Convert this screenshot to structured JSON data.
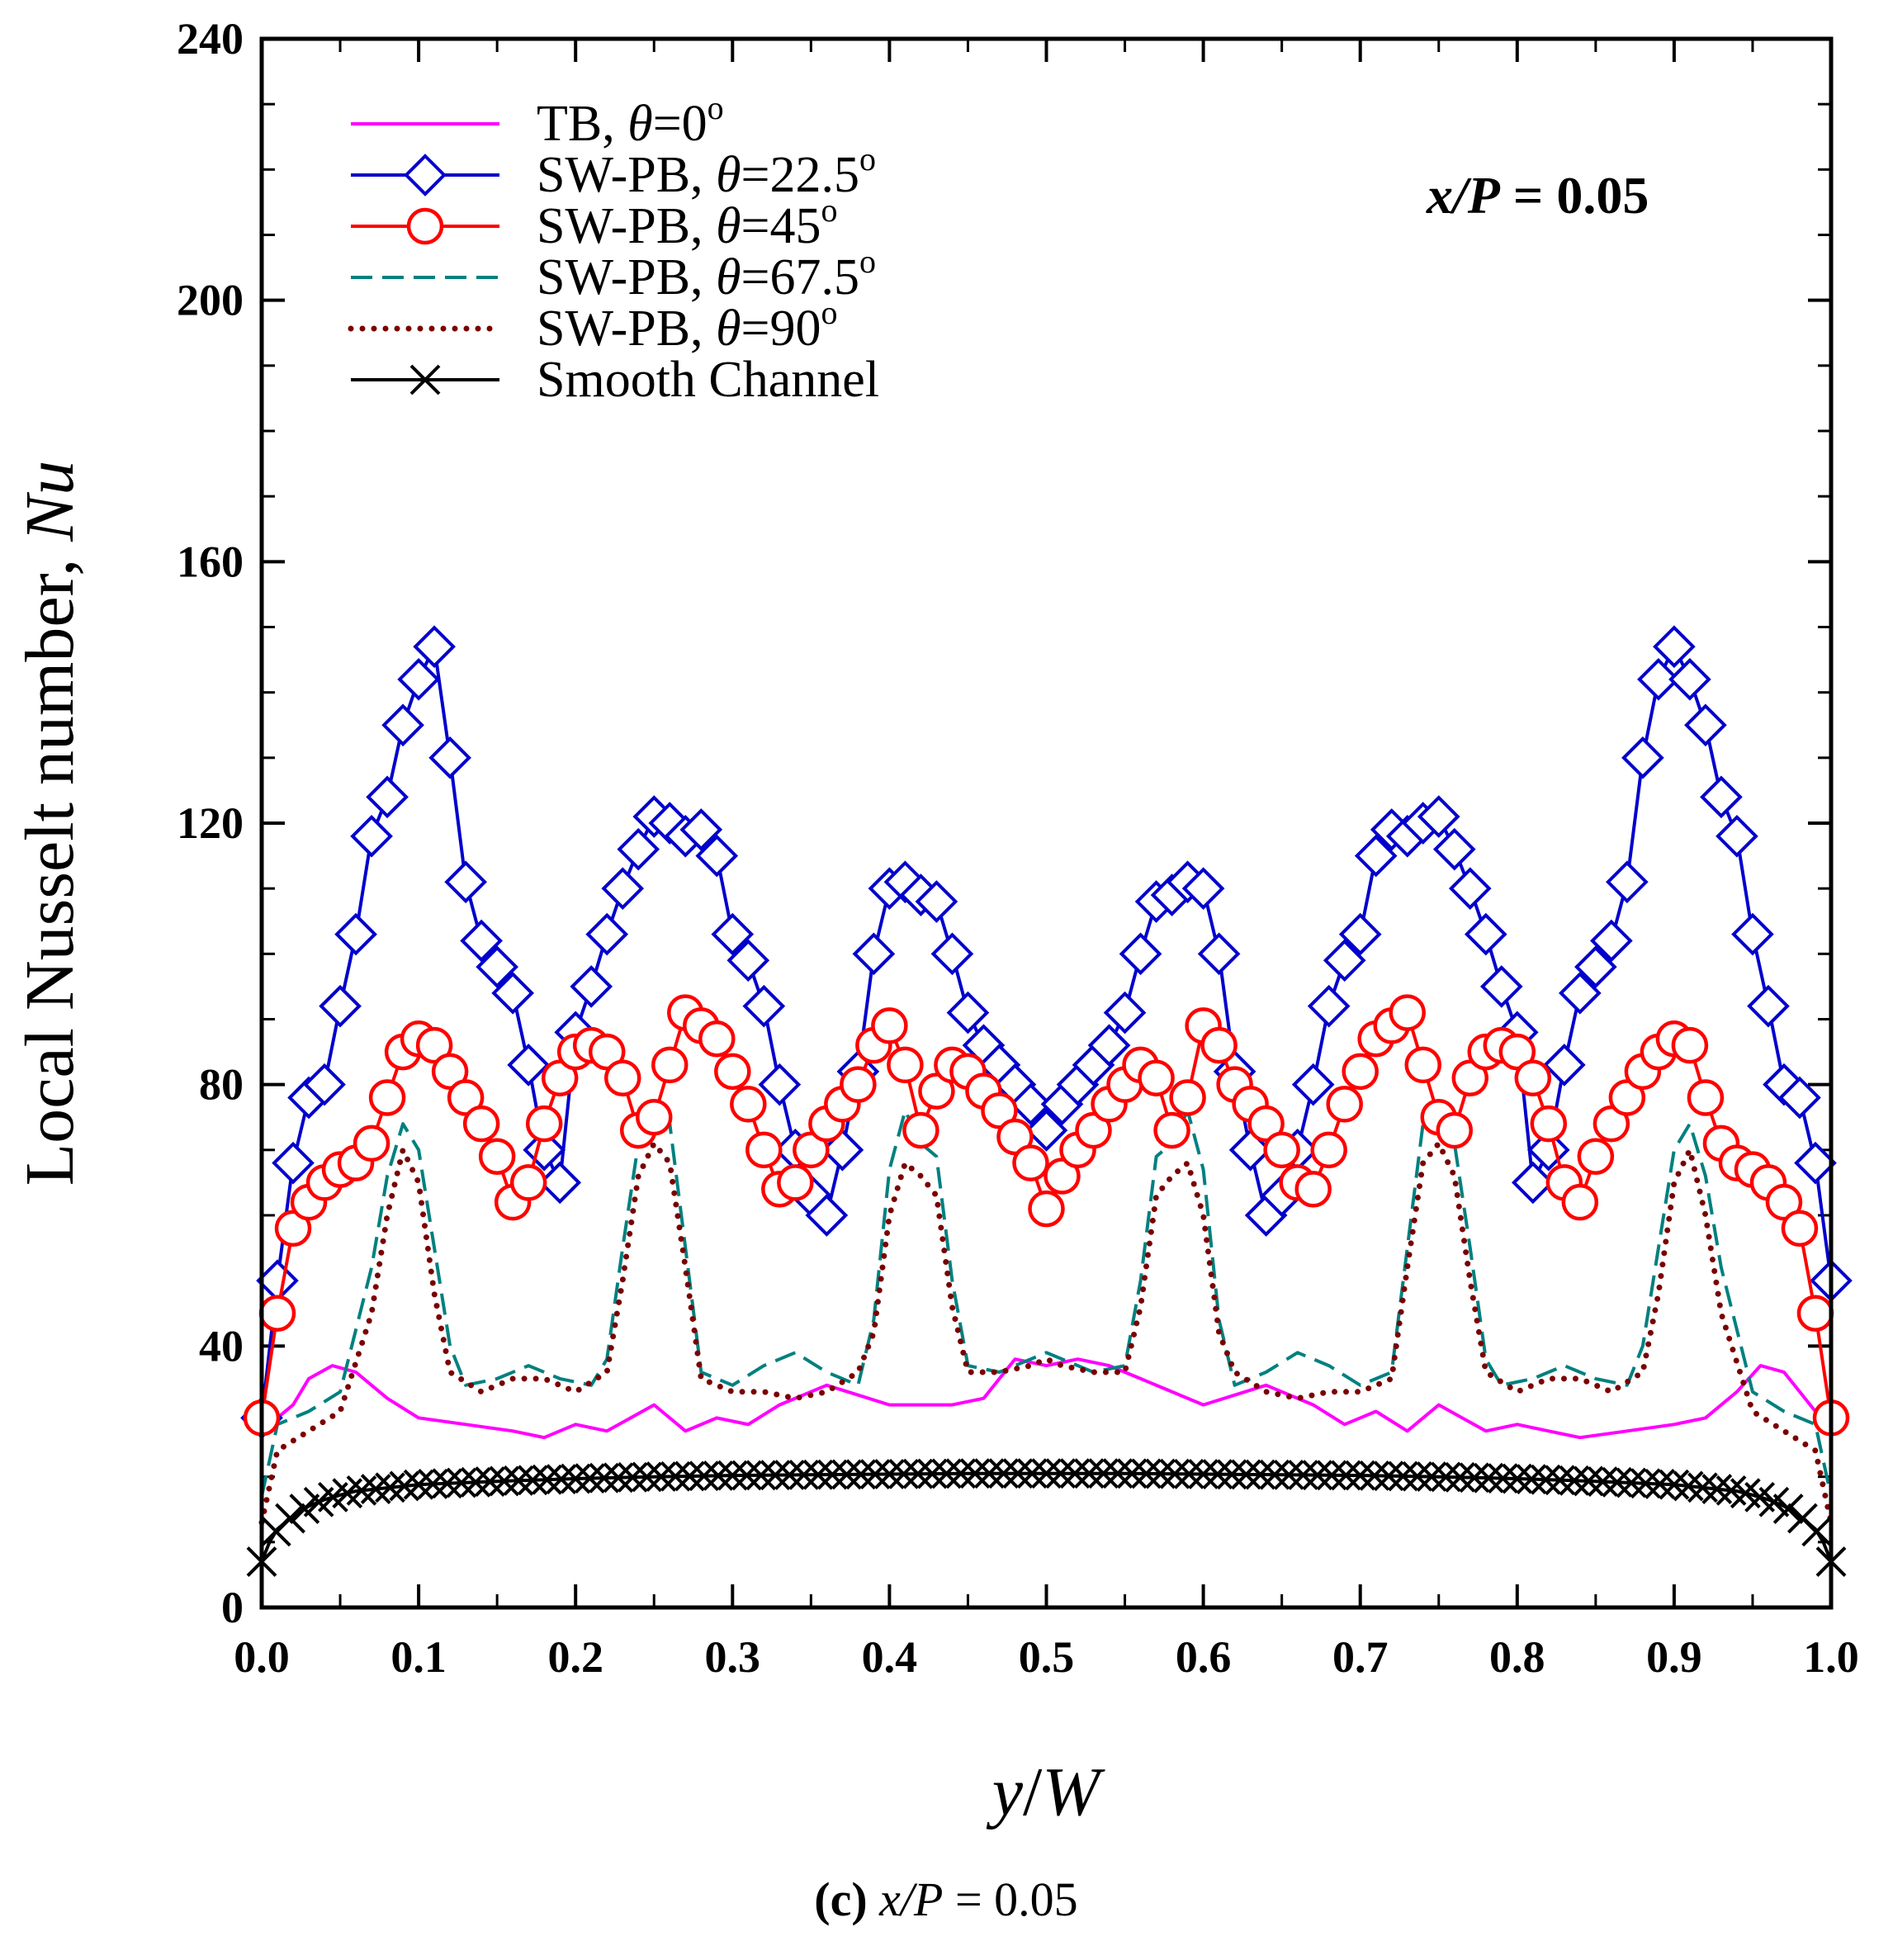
{
  "chart_data": {
    "type": "line",
    "xlabel": "y/W",
    "xlabel_var": "y",
    "xlabel_den": "W",
    "ylabel": "Local Nusselt number, Nu",
    "ylabel_text": "Local Nusselt number, ",
    "ylabel_sym": "Nu",
    "xlim": [
      0.0,
      1.0
    ],
    "ylim": [
      0,
      240
    ],
    "xticks": [
      "0.0",
      "0.1",
      "0.2",
      "0.3",
      "0.4",
      "0.5",
      "0.6",
      "0.7",
      "0.8",
      "0.9",
      "1.0"
    ],
    "yticks": [
      "0",
      "40",
      "80",
      "120",
      "160",
      "200",
      "240"
    ],
    "annotation": "x/P = 0.05",
    "annotation_var": "x/P",
    "annotation_val": " = 0.05",
    "caption_letter": "(c)",
    "caption_var": "x/P",
    "caption_val": " = 0.05",
    "legend_position": "top-left",
    "series": [
      {
        "name": "TB, θ=0°",
        "label_prefix": "TB, ",
        "label_theta": "θ",
        "label_value": "=0",
        "label_deg": "o",
        "color": "#ff00ff",
        "line": "solid",
        "marker": "none",
        "x": [
          0.0,
          0.01,
          0.02,
          0.03,
          0.045,
          0.06,
          0.08,
          0.1,
          0.13,
          0.16,
          0.18,
          0.2,
          0.22,
          0.25,
          0.27,
          0.29,
          0.31,
          0.33,
          0.36,
          0.4,
          0.44,
          0.46,
          0.48,
          0.5,
          0.52,
          0.54,
          0.56,
          0.6,
          0.64,
          0.67,
          0.69,
          0.71,
          0.73,
          0.75,
          0.78,
          0.8,
          0.82,
          0.84,
          0.87,
          0.9,
          0.92,
          0.94,
          0.955,
          0.97,
          0.98,
          0.99,
          1.0
        ],
        "values": [
          29,
          29,
          31,
          35,
          37,
          36,
          32,
          29,
          28,
          27,
          26,
          28,
          27,
          31,
          27,
          29,
          28,
          31,
          34,
          31,
          31,
          32,
          38,
          37,
          38,
          37,
          35,
          31,
          34,
          31,
          28,
          30,
          27,
          31,
          27,
          28,
          27,
          26,
          27,
          28,
          29,
          33,
          37,
          36,
          33,
          30,
          29
        ]
      },
      {
        "name": "SW-PB, θ=22.5°",
        "label_prefix": "SW-PB, ",
        "label_theta": "θ",
        "label_value": "=22.5",
        "label_deg": "o",
        "color": "#0000cc",
        "line": "solid",
        "marker": "diamond",
        "x": [
          0.0,
          0.01,
          0.02,
          0.03,
          0.04,
          0.05,
          0.06,
          0.07,
          0.08,
          0.09,
          0.1,
          0.11,
          0.12,
          0.13,
          0.14,
          0.15,
          0.16,
          0.17,
          0.18,
          0.19,
          0.2,
          0.21,
          0.22,
          0.23,
          0.24,
          0.25,
          0.26,
          0.27,
          0.28,
          0.29,
          0.3,
          0.31,
          0.32,
          0.33,
          0.34,
          0.35,
          0.36,
          0.37,
          0.38,
          0.39,
          0.4,
          0.41,
          0.42,
          0.43,
          0.44,
          0.45,
          0.46,
          0.47,
          0.48,
          0.49,
          0.5,
          0.51,
          0.52,
          0.53,
          0.54,
          0.55,
          0.56,
          0.57,
          0.58,
          0.59,
          0.6,
          0.61,
          0.62,
          0.63,
          0.64,
          0.65,
          0.66,
          0.67,
          0.68,
          0.69,
          0.7,
          0.71,
          0.72,
          0.73,
          0.74,
          0.75,
          0.76,
          0.77,
          0.78,
          0.79,
          0.8,
          0.81,
          0.82,
          0.83,
          0.84,
          0.85,
          0.86,
          0.87,
          0.88,
          0.89,
          0.9,
          0.91,
          0.92,
          0.93,
          0.94,
          0.95,
          0.96,
          0.97,
          0.98,
          0.99,
          1.0
        ],
        "values": [
          29,
          50,
          68,
          78,
          80,
          92,
          103,
          118,
          124,
          135,
          142,
          147,
          130,
          111,
          102,
          98,
          94,
          83,
          70,
          65,
          88,
          95,
          103,
          110,
          116,
          121,
          120,
          118,
          119,
          115,
          103,
          99,
          92,
          80,
          70,
          63,
          60,
          70,
          82,
          100,
          110,
          111,
          109,
          108,
          100,
          91,
          86,
          83,
          80,
          77,
          73,
          77,
          80,
          83,
          86,
          91,
          100,
          108,
          109,
          111,
          110,
          100,
          82,
          70,
          60,
          63,
          70,
          80,
          92,
          99,
          103,
          115,
          119,
          118,
          120,
          121,
          116,
          110,
          103,
          95,
          88,
          65,
          70,
          83,
          94,
          98,
          102,
          111,
          130,
          142,
          147,
          142,
          135,
          124,
          118,
          103,
          92,
          80,
          78,
          68,
          50
        ]
      },
      {
        "name": "SW-PB, θ=45°",
        "label_prefix": "SW-PB, ",
        "label_theta": "θ",
        "label_value": "=45",
        "label_deg": "o",
        "color": "#ff0000",
        "line": "solid",
        "marker": "circle",
        "x": [
          0.0,
          0.01,
          0.02,
          0.03,
          0.04,
          0.05,
          0.06,
          0.07,
          0.08,
          0.09,
          0.1,
          0.11,
          0.12,
          0.13,
          0.14,
          0.15,
          0.16,
          0.17,
          0.18,
          0.19,
          0.2,
          0.21,
          0.22,
          0.23,
          0.24,
          0.25,
          0.26,
          0.27,
          0.28,
          0.29,
          0.3,
          0.31,
          0.32,
          0.33,
          0.34,
          0.35,
          0.36,
          0.37,
          0.38,
          0.39,
          0.4,
          0.41,
          0.42,
          0.43,
          0.44,
          0.45,
          0.46,
          0.47,
          0.48,
          0.49,
          0.5,
          0.51,
          0.52,
          0.53,
          0.54,
          0.55,
          0.56,
          0.57,
          0.58,
          0.59,
          0.6,
          0.61,
          0.62,
          0.63,
          0.64,
          0.65,
          0.66,
          0.67,
          0.68,
          0.69,
          0.7,
          0.71,
          0.72,
          0.73,
          0.74,
          0.75,
          0.76,
          0.77,
          0.78,
          0.79,
          0.8,
          0.81,
          0.82,
          0.83,
          0.84,
          0.85,
          0.86,
          0.87,
          0.88,
          0.89,
          0.9,
          0.91,
          0.92,
          0.93,
          0.94,
          0.95,
          0.96,
          0.97,
          0.98,
          0.99,
          1.0
        ],
        "values": [
          29,
          45,
          58,
          62,
          65,
          67,
          68,
          71,
          78,
          85,
          87,
          86,
          82,
          78,
          74,
          69,
          62,
          65,
          74,
          81,
          85,
          86,
          85,
          81,
          73,
          75,
          83,
          91,
          89,
          87,
          82,
          77,
          70,
          64,
          65,
          70,
          74,
          77,
          80,
          86,
          89,
          83,
          73,
          79,
          83,
          82,
          79,
          76,
          72,
          68,
          61,
          66,
          70,
          73,
          77,
          80,
          83,
          81,
          73,
          78,
          89,
          86,
          80,
          77,
          74,
          70,
          65,
          64,
          70,
          77,
          82,
          87,
          89,
          91,
          83,
          75,
          73,
          81,
          85,
          86,
          85,
          81,
          74,
          65,
          62,
          69,
          74,
          78,
          82,
          85,
          87,
          86,
          78,
          71,
          68,
          67,
          65,
          62,
          58,
          45,
          29
        ]
      },
      {
        "name": "SW-PB, θ=67.5°",
        "label_prefix": "SW-PB, ",
        "label_theta": "θ",
        "label_value": "=67.5",
        "label_deg": "o",
        "color": "#008080",
        "line": "dashed",
        "marker": "none",
        "x": [
          0.0,
          0.01,
          0.03,
          0.05,
          0.07,
          0.08,
          0.09,
          0.1,
          0.11,
          0.12,
          0.13,
          0.15,
          0.17,
          0.19,
          0.21,
          0.22,
          0.23,
          0.24,
          0.25,
          0.26,
          0.27,
          0.28,
          0.3,
          0.32,
          0.34,
          0.36,
          0.38,
          0.39,
          0.4,
          0.41,
          0.42,
          0.43,
          0.44,
          0.45,
          0.47,
          0.49,
          0.5,
          0.51,
          0.53,
          0.55,
          0.56,
          0.57,
          0.58,
          0.59,
          0.6,
          0.61,
          0.62,
          0.64,
          0.66,
          0.68,
          0.7,
          0.72,
          0.73,
          0.74,
          0.75,
          0.76,
          0.77,
          0.78,
          0.79,
          0.81,
          0.83,
          0.85,
          0.87,
          0.88,
          0.89,
          0.9,
          0.91,
          0.92,
          0.93,
          0.95,
          0.97,
          0.99,
          1.0
        ],
        "values": [
          17,
          28,
          30,
          33,
          52,
          66,
          74,
          70,
          55,
          40,
          34,
          35,
          37,
          35,
          34,
          38,
          55,
          71,
          73,
          74,
          55,
          36,
          34,
          37,
          39,
          36,
          34,
          44,
          67,
          76,
          71,
          69,
          50,
          37,
          36,
          38,
          39,
          38,
          36,
          37,
          50,
          69,
          71,
          76,
          67,
          44,
          34,
          36,
          39,
          37,
          34,
          36,
          55,
          74,
          73,
          71,
          55,
          38,
          34,
          35,
          37,
          35,
          34,
          40,
          55,
          70,
          74,
          66,
          52,
          33,
          30,
          28,
          17
        ]
      },
      {
        "name": "SW-PB, θ=90°",
        "label_prefix": "SW-PB, ",
        "label_theta": "θ",
        "label_value": "=90",
        "label_deg": "o",
        "color": "#7a0000",
        "line": "dotted",
        "marker": "none",
        "x": [
          0.0,
          0.01,
          0.03,
          0.05,
          0.07,
          0.08,
          0.09,
          0.1,
          0.11,
          0.12,
          0.14,
          0.16,
          0.18,
          0.2,
          0.22,
          0.23,
          0.24,
          0.25,
          0.26,
          0.27,
          0.28,
          0.3,
          0.32,
          0.34,
          0.36,
          0.38,
          0.39,
          0.4,
          0.41,
          0.42,
          0.43,
          0.44,
          0.45,
          0.47,
          0.49,
          0.5,
          0.51,
          0.53,
          0.55,
          0.56,
          0.57,
          0.58,
          0.59,
          0.6,
          0.61,
          0.62,
          0.64,
          0.66,
          0.68,
          0.7,
          0.72,
          0.73,
          0.74,
          0.75,
          0.76,
          0.77,
          0.78,
          0.8,
          0.82,
          0.84,
          0.86,
          0.88,
          0.89,
          0.9,
          0.91,
          0.92,
          0.93,
          0.95,
          0.97,
          0.99,
          1.0
        ],
        "values": [
          13,
          24,
          27,
          30,
          45,
          60,
          70,
          65,
          48,
          36,
          33,
          35,
          35,
          33,
          36,
          50,
          66,
          71,
          68,
          52,
          35,
          33,
          33,
          32,
          33,
          36,
          42,
          60,
          68,
          66,
          63,
          46,
          36,
          36,
          37,
          38,
          37,
          36,
          36,
          46,
          63,
          66,
          68,
          60,
          42,
          36,
          33,
          32,
          33,
          33,
          35,
          52,
          68,
          71,
          66,
          50,
          36,
          33,
          35,
          35,
          33,
          36,
          48,
          65,
          70,
          60,
          45,
          30,
          27,
          24,
          13
        ]
      },
      {
        "name": "Smooth Channel",
        "label_prefix": "Smooth Channel",
        "color": "#000000",
        "line": "solid",
        "marker": "x",
        "x": [
          0.0,
          0.005,
          0.01,
          0.02,
          0.03,
          0.04,
          0.05,
          0.06,
          0.08,
          0.1,
          0.15,
          0.2,
          0.25,
          0.3,
          0.35,
          0.4,
          0.45,
          0.5,
          0.55,
          0.6,
          0.65,
          0.7,
          0.75,
          0.8,
          0.85,
          0.9,
          0.92,
          0.94,
          0.95,
          0.96,
          0.97,
          0.98,
          0.99,
          0.995,
          1.0
        ],
        "values": [
          7,
          10,
          12,
          14,
          15.5,
          16.5,
          17.2,
          17.8,
          18.3,
          18.8,
          19.3,
          19.7,
          20,
          20.2,
          20.3,
          20.4,
          20.5,
          20.5,
          20.5,
          20.4,
          20.3,
          20.2,
          20,
          19.7,
          19.3,
          18.8,
          18.3,
          17.8,
          17.2,
          16.5,
          15.5,
          14,
          12,
          10,
          7
        ]
      }
    ]
  }
}
